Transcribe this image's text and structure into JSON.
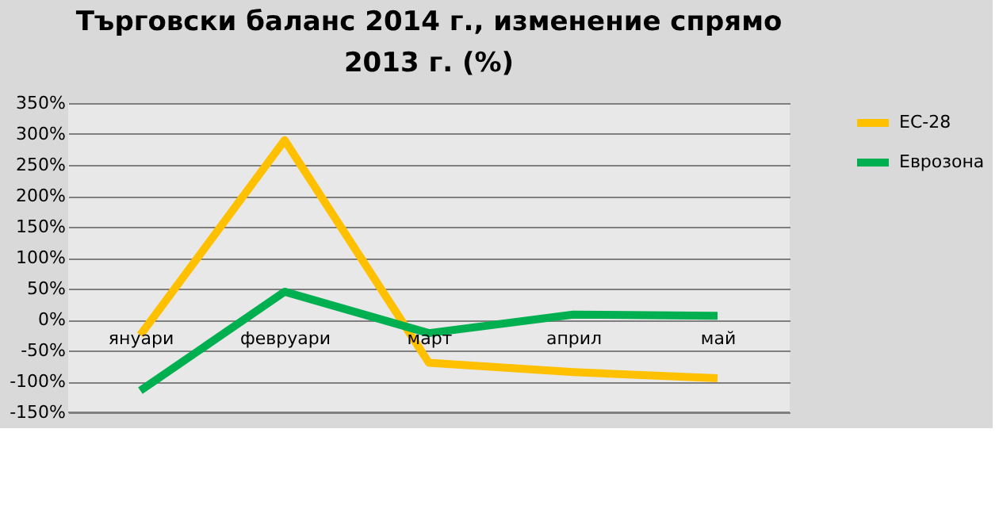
{
  "chart_data": {
    "type": "line",
    "title": "Търговски баланс 2014 г., изменение спрямо 2013 г. (%)",
    "categories": [
      "януари",
      "февруари",
      "март",
      "април",
      "май"
    ],
    "series": [
      {
        "name": "ЕС-28",
        "color": "#ffc000",
        "values": [
          -25,
          290,
          -70,
          -85,
          -95
        ]
      },
      {
        "name": "Еврозона",
        "color": "#00b050",
        "values": [
          -115,
          45,
          -22,
          8,
          6
        ]
      }
    ],
    "ylim": [
      -150,
      350
    ],
    "yticks": [
      {
        "value": -150,
        "label": "-150%"
      },
      {
        "value": -100,
        "label": "-100%"
      },
      {
        "value": -50,
        "label": "-50%"
      },
      {
        "value": 0,
        "label": "0%"
      },
      {
        "value": 50,
        "label": "50%"
      },
      {
        "value": 100,
        "label": "100%"
      },
      {
        "value": 150,
        "label": "150%"
      },
      {
        "value": 200,
        "label": "200%"
      },
      {
        "value": 250,
        "label": "250%"
      },
      {
        "value": 300,
        "label": "300%"
      },
      {
        "value": 350,
        "label": "350%"
      }
    ],
    "grid": "y",
    "legend": "right",
    "marker": "none",
    "line_style": "solid"
  }
}
